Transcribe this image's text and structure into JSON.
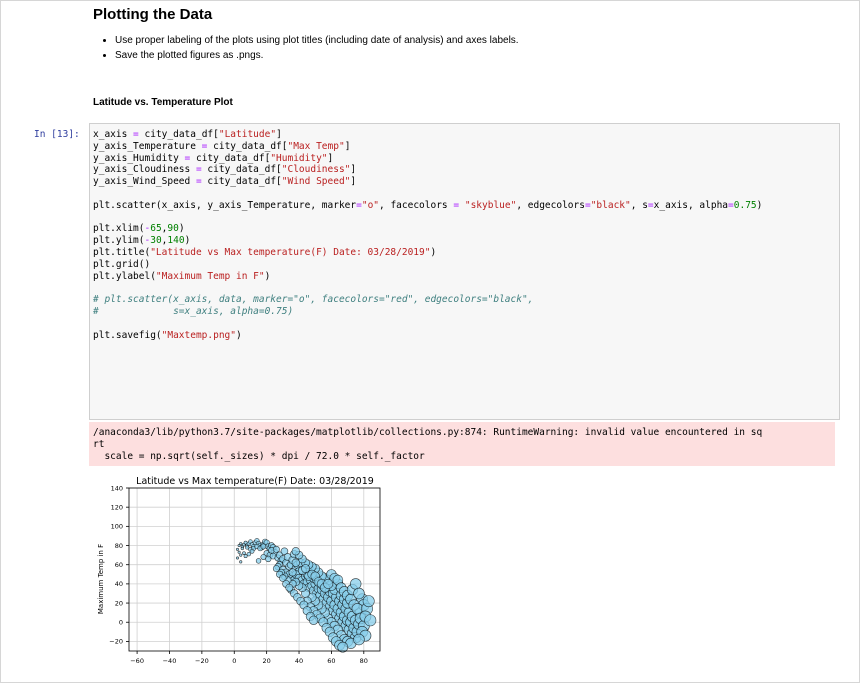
{
  "markdown": {
    "heading": "Plotting the Data",
    "bullets": [
      "Use proper labeling of the plots using plot titles (including date of analysis) and axes labels.",
      "Save the plotted figures as .pngs."
    ],
    "subheading": "Latitude vs. Temperature Plot"
  },
  "cell": {
    "prompt": "In [13]:"
  },
  "warning": {
    "line1": "/anaconda3/lib/python3.7/site-packages/matplotlib/collections.py:874: RuntimeWarning: invalid value encountered in sq",
    "line2": "rt",
    "line3": "  scale = np.sqrt(self._sizes) * dpi / 72.0 * self._factor"
  },
  "colors": {
    "point_face": "#87ceeb",
    "point_edge": "#000000",
    "warning_bg": "#fddfdf",
    "code_bg": "#f7f7f7",
    "prompt": "#303f9f"
  },
  "chart_data": {
    "type": "scatter",
    "title": "Latitude vs Max temperature(F) Date: 03/28/2019",
    "xlabel": "",
    "ylabel": "Maximum Temp in F",
    "xlim": [
      -65,
      90
    ],
    "ylim": [
      -30,
      140
    ],
    "xticks": [
      "−60",
      "−40",
      "−20",
      "0",
      "20",
      "40",
      "60",
      "80"
    ],
    "yticks": [
      "−20",
      "0",
      "20",
      "40",
      "60",
      "80",
      "100",
      "120",
      "140"
    ],
    "grid": true,
    "marker": "o",
    "alpha": 0.75,
    "size_encoding": "s = latitude",
    "points": [
      [
        3,
        80
      ],
      [
        4,
        82
      ],
      [
        5,
        79
      ],
      [
        6,
        81
      ],
      [
        7,
        83
      ],
      [
        8,
        80
      ],
      [
        9,
        82
      ],
      [
        10,
        84
      ],
      [
        11,
        81
      ],
      [
        12,
        79
      ],
      [
        13,
        83
      ],
      [
        14,
        85
      ],
      [
        15,
        82
      ],
      [
        16,
        80
      ],
      [
        17,
        78
      ],
      [
        18,
        81
      ],
      [
        19,
        84
      ],
      [
        20,
        83
      ],
      [
        21,
        79
      ],
      [
        22,
        77
      ],
      [
        23,
        80
      ],
      [
        24,
        78
      ],
      [
        5,
        77
      ],
      [
        8,
        78
      ],
      [
        10,
        76
      ],
      [
        12,
        77
      ],
      [
        14,
        79
      ],
      [
        16,
        77
      ],
      [
        18,
        79
      ],
      [
        2,
        76
      ],
      [
        4,
        70
      ],
      [
        7,
        69
      ],
      [
        6,
        72
      ],
      [
        4,
        63
      ],
      [
        20,
        72
      ],
      [
        22,
        70
      ],
      [
        21,
        66
      ],
      [
        25,
        73
      ],
      [
        24,
        69
      ],
      [
        27,
        67
      ],
      [
        23,
        75
      ],
      [
        26,
        76
      ],
      [
        28,
        70
      ],
      [
        29,
        64
      ],
      [
        30,
        66
      ],
      [
        31,
        74
      ],
      [
        32,
        62
      ],
      [
        33,
        68
      ],
      [
        34,
        58
      ],
      [
        35,
        60
      ],
      [
        36,
        65
      ],
      [
        37,
        71
      ],
      [
        38,
        56
      ],
      [
        39,
        60
      ],
      [
        40,
        53
      ],
      [
        41,
        62
      ],
      [
        28,
        60
      ],
      [
        27,
        58
      ],
      [
        30,
        55
      ],
      [
        32,
        52
      ],
      [
        34,
        50
      ],
      [
        36,
        48
      ],
      [
        37,
        44
      ],
      [
        38,
        50
      ],
      [
        40,
        46
      ],
      [
        42,
        44
      ],
      [
        43,
        40
      ],
      [
        44,
        48
      ],
      [
        45,
        42
      ],
      [
        46,
        36
      ],
      [
        47,
        44
      ],
      [
        48,
        38
      ],
      [
        49,
        33
      ],
      [
        50,
        40
      ],
      [
        51,
        30
      ],
      [
        52,
        35
      ],
      [
        53,
        28
      ],
      [
        54,
        34
      ],
      [
        55,
        24
      ],
      [
        56,
        30
      ],
      [
        57,
        20
      ],
      [
        58,
        26
      ],
      [
        59,
        16
      ],
      [
        60,
        22
      ],
      [
        61,
        12
      ],
      [
        62,
        18
      ],
      [
        63,
        8
      ],
      [
        64,
        14
      ],
      [
        65,
        4
      ],
      [
        66,
        10
      ],
      [
        67,
        0
      ],
      [
        68,
        6
      ],
      [
        69,
        -4
      ],
      [
        70,
        2
      ],
      [
        71,
        -8
      ],
      [
        72,
        0
      ],
      [
        73,
        -12
      ],
      [
        74,
        -6
      ],
      [
        75,
        -16
      ],
      [
        76,
        -10
      ],
      [
        45,
        50
      ],
      [
        47,
        54
      ],
      [
        49,
        46
      ],
      [
        51,
        44
      ],
      [
        53,
        42
      ],
      [
        55,
        38
      ],
      [
        57,
        36
      ],
      [
        59,
        32
      ],
      [
        61,
        30
      ],
      [
        63,
        26
      ],
      [
        65,
        22
      ],
      [
        67,
        18
      ],
      [
        69,
        14
      ],
      [
        71,
        10
      ],
      [
        73,
        6
      ],
      [
        75,
        2
      ],
      [
        77,
        -2
      ],
      [
        78,
        10
      ],
      [
        79,
        24
      ],
      [
        80,
        18
      ],
      [
        62,
        34
      ],
      [
        64,
        40
      ],
      [
        66,
        28
      ],
      [
        68,
        24
      ],
      [
        70,
        20
      ],
      [
        60,
        38
      ],
      [
        58,
        44
      ],
      [
        56,
        46
      ],
      [
        54,
        48
      ],
      [
        52,
        52
      ],
      [
        50,
        56
      ],
      [
        48,
        58
      ],
      [
        46,
        60
      ],
      [
        44,
        62
      ],
      [
        42,
        66
      ],
      [
        40,
        70
      ],
      [
        38,
        74
      ],
      [
        58,
        4
      ],
      [
        60,
        0
      ],
      [
        62,
        -4
      ],
      [
        64,
        -8
      ],
      [
        66,
        -14
      ],
      [
        68,
        -18
      ],
      [
        70,
        -20
      ],
      [
        72,
        -22
      ],
      [
        56,
        10
      ],
      [
        54,
        14
      ],
      [
        52,
        18
      ],
      [
        50,
        22
      ],
      [
        48,
        26
      ],
      [
        44,
        30
      ],
      [
        42,
        36
      ],
      [
        40,
        38
      ],
      [
        38,
        42
      ],
      [
        36,
        40
      ],
      [
        33,
        44
      ],
      [
        31,
        48
      ],
      [
        29,
        52
      ],
      [
        45,
        22
      ],
      [
        47,
        16
      ],
      [
        49,
        12
      ],
      [
        51,
        8
      ],
      [
        53,
        4
      ],
      [
        55,
        0
      ],
      [
        57,
        -6
      ],
      [
        59,
        -10
      ],
      [
        61,
        -16
      ],
      [
        63,
        -20
      ],
      [
        65,
        -24
      ],
      [
        67,
        -26
      ],
      [
        60,
        50
      ],
      [
        62,
        46
      ],
      [
        64,
        44
      ],
      [
        66,
        36
      ],
      [
        68,
        32
      ],
      [
        70,
        28
      ],
      [
        72,
        24
      ],
      [
        74,
        18
      ],
      [
        76,
        14
      ],
      [
        78,
        4
      ],
      [
        80,
        -4
      ],
      [
        35,
        34
      ],
      [
        37,
        30
      ],
      [
        39,
        26
      ],
      [
        41,
        22
      ],
      [
        43,
        18
      ],
      [
        45,
        12
      ],
      [
        47,
        6
      ],
      [
        49,
        2
      ],
      [
        15,
        64
      ],
      [
        18,
        68
      ],
      [
        11,
        74
      ],
      [
        9,
        71
      ],
      [
        3,
        73
      ],
      [
        2,
        67
      ],
      [
        26,
        56
      ],
      [
        28,
        50
      ],
      [
        30,
        46
      ],
      [
        32,
        40
      ],
      [
        34,
        36
      ],
      [
        36,
        52
      ],
      [
        38,
        62
      ],
      [
        42,
        54
      ],
      [
        44,
        56
      ],
      [
        46,
        48
      ],
      [
        48,
        50
      ],
      [
        50,
        48
      ],
      [
        52,
        42
      ],
      [
        54,
        40
      ],
      [
        56,
        36
      ],
      [
        58,
        40
      ],
      [
        73,
        34
      ],
      [
        75,
        40
      ],
      [
        77,
        30
      ],
      [
        82,
        14
      ],
      [
        81,
        6
      ],
      [
        84,
        2
      ],
      [
        83,
        22
      ],
      [
        79,
        -10
      ],
      [
        81,
        -14
      ],
      [
        77,
        -18
      ]
    ]
  }
}
